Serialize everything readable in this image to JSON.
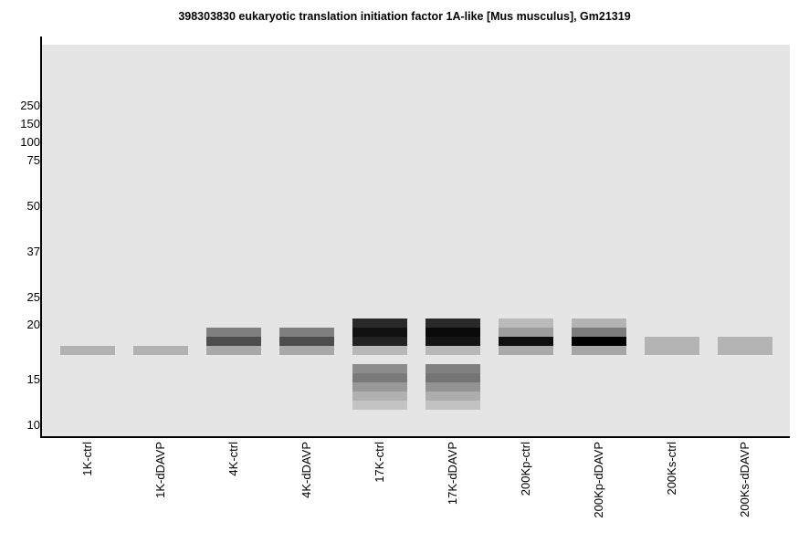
{
  "chart_data": {
    "type": "western-blot",
    "title": "398303830 eukaryotic translation initiation factor 1A-like [Mus musculus], Gm21319",
    "y_scale": "log",
    "y_ticks": [
      250,
      150,
      100,
      75,
      50,
      37,
      25,
      20,
      15,
      10
    ],
    "categories": [
      "1K-ctrl",
      "1K-dDAVP",
      "4K-ctrl",
      "4K-dDAVP",
      "17K-ctrl",
      "17K-dDAVP",
      "200Kp-ctrl",
      "200Kp-dDAVP",
      "200Ks-ctrl",
      "200Ks-dDAVP"
    ],
    "lanes": [
      {
        "label": "1K-ctrl",
        "bands": [
          {
            "color": "#b2b2b2"
          }
        ]
      },
      {
        "label": "1K-dDAVP",
        "bands": [
          {
            "color": "#b2b2b2"
          }
        ]
      },
      {
        "label": "4K-ctrl",
        "bands": [
          {
            "color": "#7f7f7f"
          },
          {
            "color": "#4d4d4d"
          },
          {
            "color": "#a8a8a8"
          }
        ]
      },
      {
        "label": "4K-dDAVP",
        "bands": [
          {
            "color": "#7f7f7f"
          },
          {
            "color": "#4d4d4d"
          },
          {
            "color": "#a8a8a8"
          }
        ]
      },
      {
        "label": "17K-ctrl",
        "bands": [
          {
            "color": "#2a2a2a"
          },
          {
            "color": "#111111"
          },
          {
            "color": "#222222"
          },
          {
            "color": "#b8b8b8"
          },
          {
            "color": "#8c8c8c"
          },
          {
            "color": "#7a7a7a"
          },
          {
            "color": "#999999"
          },
          {
            "color": "#b0b0b0"
          },
          {
            "color": "#c4c4c4"
          }
        ]
      },
      {
        "label": "17K-dDAVP",
        "bands": [
          {
            "color": "#2a2a2a"
          },
          {
            "color": "#0a0a0a"
          },
          {
            "color": "#141414"
          },
          {
            "color": "#b8b8b8"
          },
          {
            "color": "#808080"
          },
          {
            "color": "#747474"
          },
          {
            "color": "#939393"
          },
          {
            "color": "#adadad"
          },
          {
            "color": "#c2c2c2"
          }
        ]
      },
      {
        "label": "200Kp-ctrl",
        "bands": [
          {
            "color": "#bababa"
          },
          {
            "color": "#9d9d9d"
          },
          {
            "color": "#0f0f0f"
          },
          {
            "color": "#aaaaaa"
          }
        ]
      },
      {
        "label": "200Kp-dDAVP",
        "bands": [
          {
            "color": "#b4b4b4"
          },
          {
            "color": "#7c7c7c"
          },
          {
            "color": "#000000"
          },
          {
            "color": "#a6a6a6"
          }
        ]
      },
      {
        "label": "200Ks-ctrl",
        "bands": [
          {
            "color": "#b4b4b4"
          }
        ]
      },
      {
        "label": "200Ks-dDAVP",
        "bands": [
          {
            "color": "#b4b4b4"
          }
        ]
      }
    ],
    "plot_background": "#e5e5e5"
  }
}
